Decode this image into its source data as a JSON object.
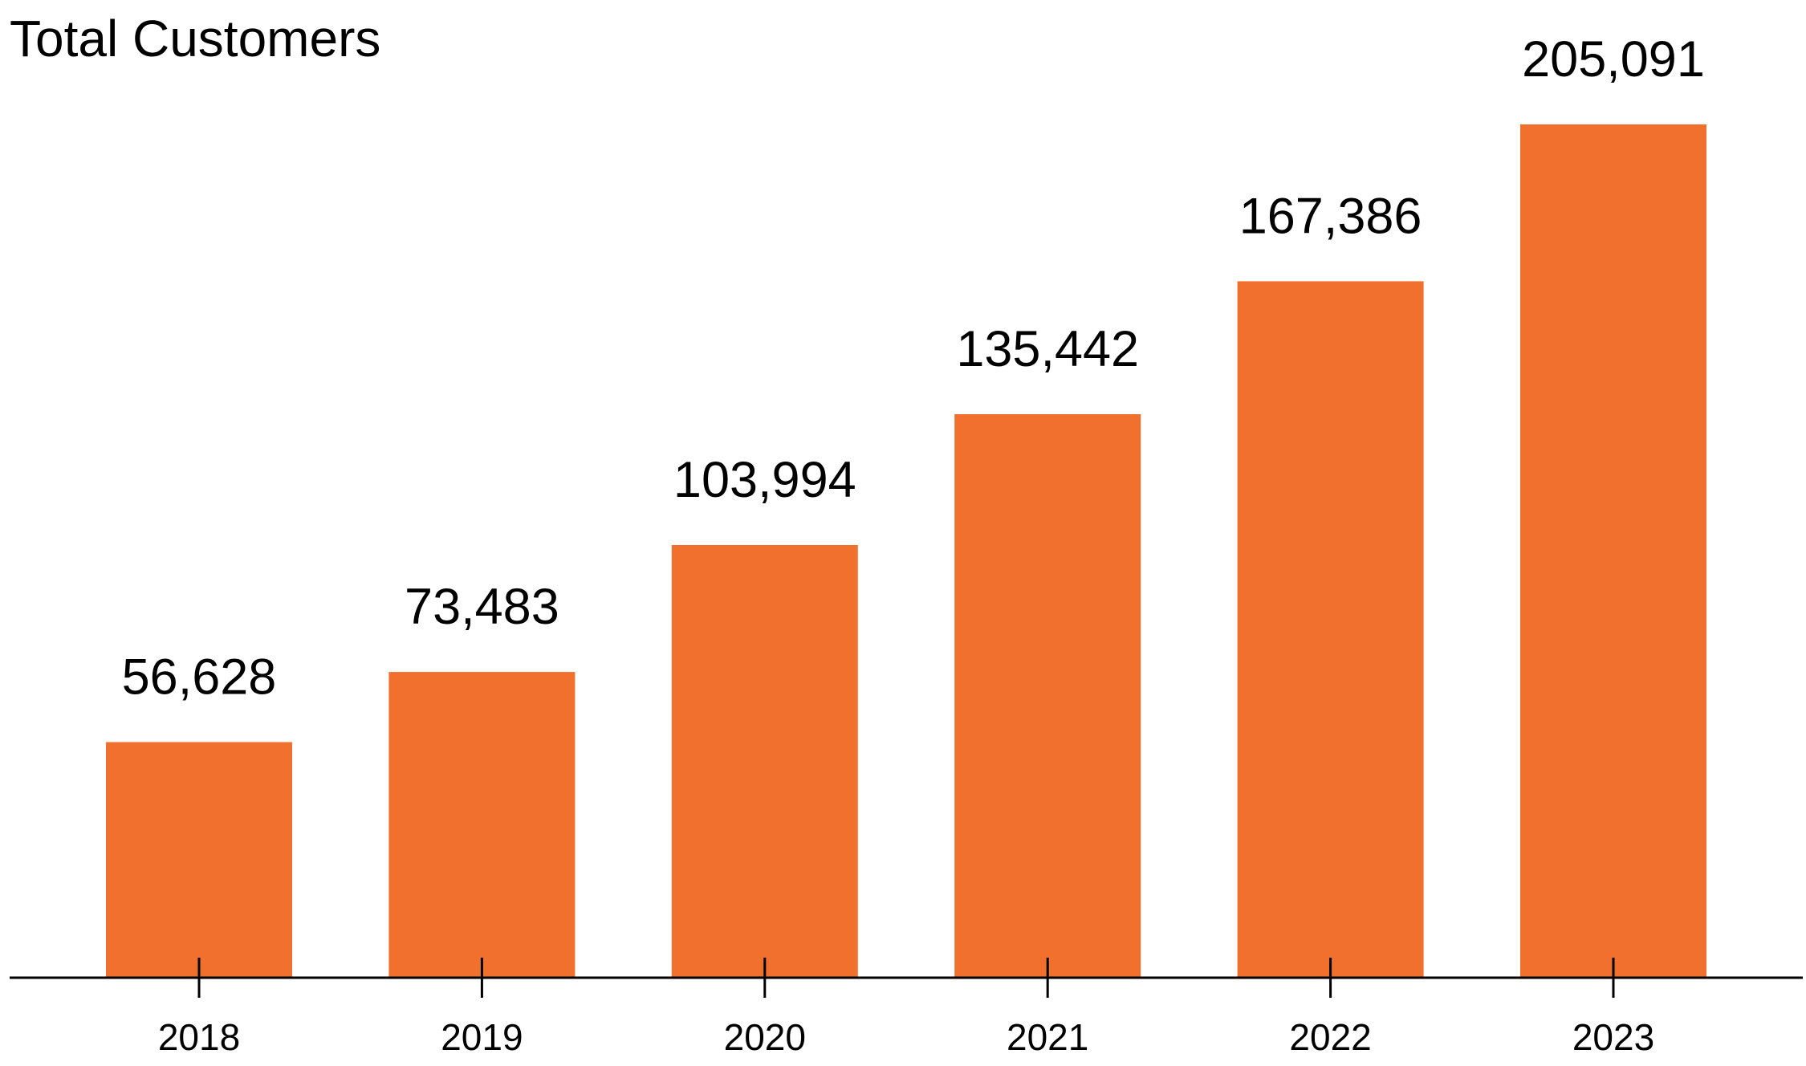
{
  "chart_data": {
    "type": "bar",
    "title": "Total Customers",
    "xlabel": "",
    "ylabel": "",
    "categories": [
      "2018",
      "2019",
      "2020",
      "2021",
      "2022",
      "2023"
    ],
    "values": [
      56628,
      73483,
      103994,
      135442,
      167386,
      205091
    ],
    "value_labels": [
      "56,628",
      "73,483",
      "103,994",
      "135,442",
      "167,386",
      "205,091"
    ],
    "ylim": [
      0,
      215000
    ],
    "grid": false,
    "legend": "none",
    "bar_color": "#F2702D",
    "axis_color": "#000000"
  }
}
